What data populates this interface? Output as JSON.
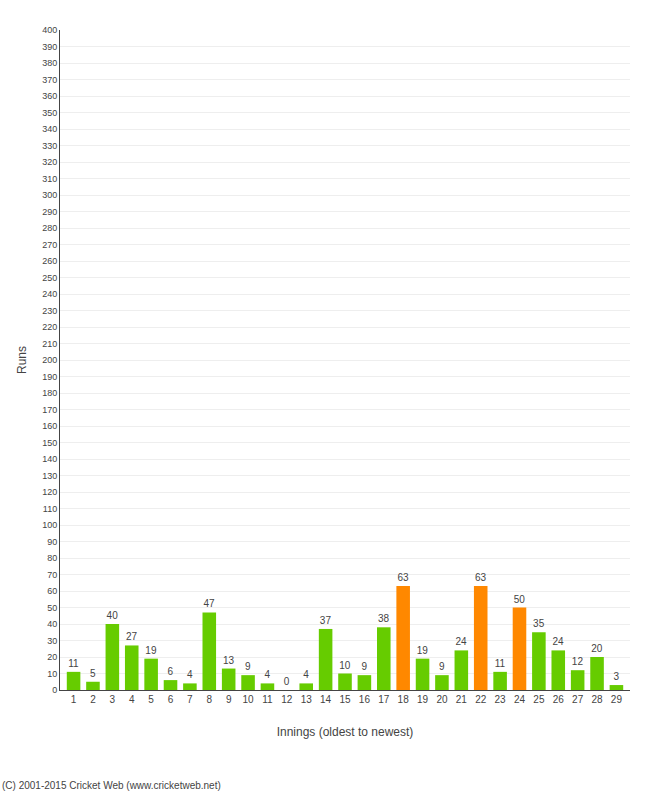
{
  "chart_data": {
    "type": "bar",
    "xlabel": "Innings (oldest to newest)",
    "ylabel": "Runs",
    "categories": [
      "1",
      "2",
      "3",
      "4",
      "5",
      "6",
      "7",
      "8",
      "9",
      "10",
      "11",
      "12",
      "13",
      "14",
      "15",
      "16",
      "17",
      "18",
      "19",
      "20",
      "21",
      "22",
      "23",
      "24",
      "25",
      "26",
      "27",
      "28",
      "29"
    ],
    "values": [
      11,
      5,
      40,
      27,
      19,
      6,
      4,
      47,
      13,
      9,
      4,
      0,
      4,
      37,
      10,
      9,
      38,
      63,
      19,
      9,
      24,
      63,
      11,
      50,
      35,
      24,
      12,
      20,
      3
    ],
    "colors": [
      "#66cc00",
      "#66cc00",
      "#66cc00",
      "#66cc00",
      "#66cc00",
      "#66cc00",
      "#66cc00",
      "#66cc00",
      "#66cc00",
      "#66cc00",
      "#66cc00",
      "#66cc00",
      "#66cc00",
      "#66cc00",
      "#66cc00",
      "#66cc00",
      "#66cc00",
      "#ff8800",
      "#66cc00",
      "#66cc00",
      "#66cc00",
      "#ff8800",
      "#66cc00",
      "#ff8800",
      "#66cc00",
      "#66cc00",
      "#66cc00",
      "#66cc00",
      "#66cc00"
    ],
    "ylim": [
      0,
      400
    ],
    "yticks": [
      0,
      10,
      20,
      30,
      40,
      50,
      60,
      70,
      80,
      90,
      100,
      110,
      120,
      130,
      140,
      150,
      160,
      170,
      180,
      190,
      200,
      210,
      220,
      230,
      240,
      250,
      260,
      270,
      280,
      290,
      300,
      310,
      320,
      330,
      340,
      350,
      360,
      370,
      380,
      390,
      400
    ],
    "grid": true,
    "data_labels": true,
    "annotations": [
      "(C) 2001-2015 Cricket Web (www.cricketweb.net)"
    ]
  }
}
